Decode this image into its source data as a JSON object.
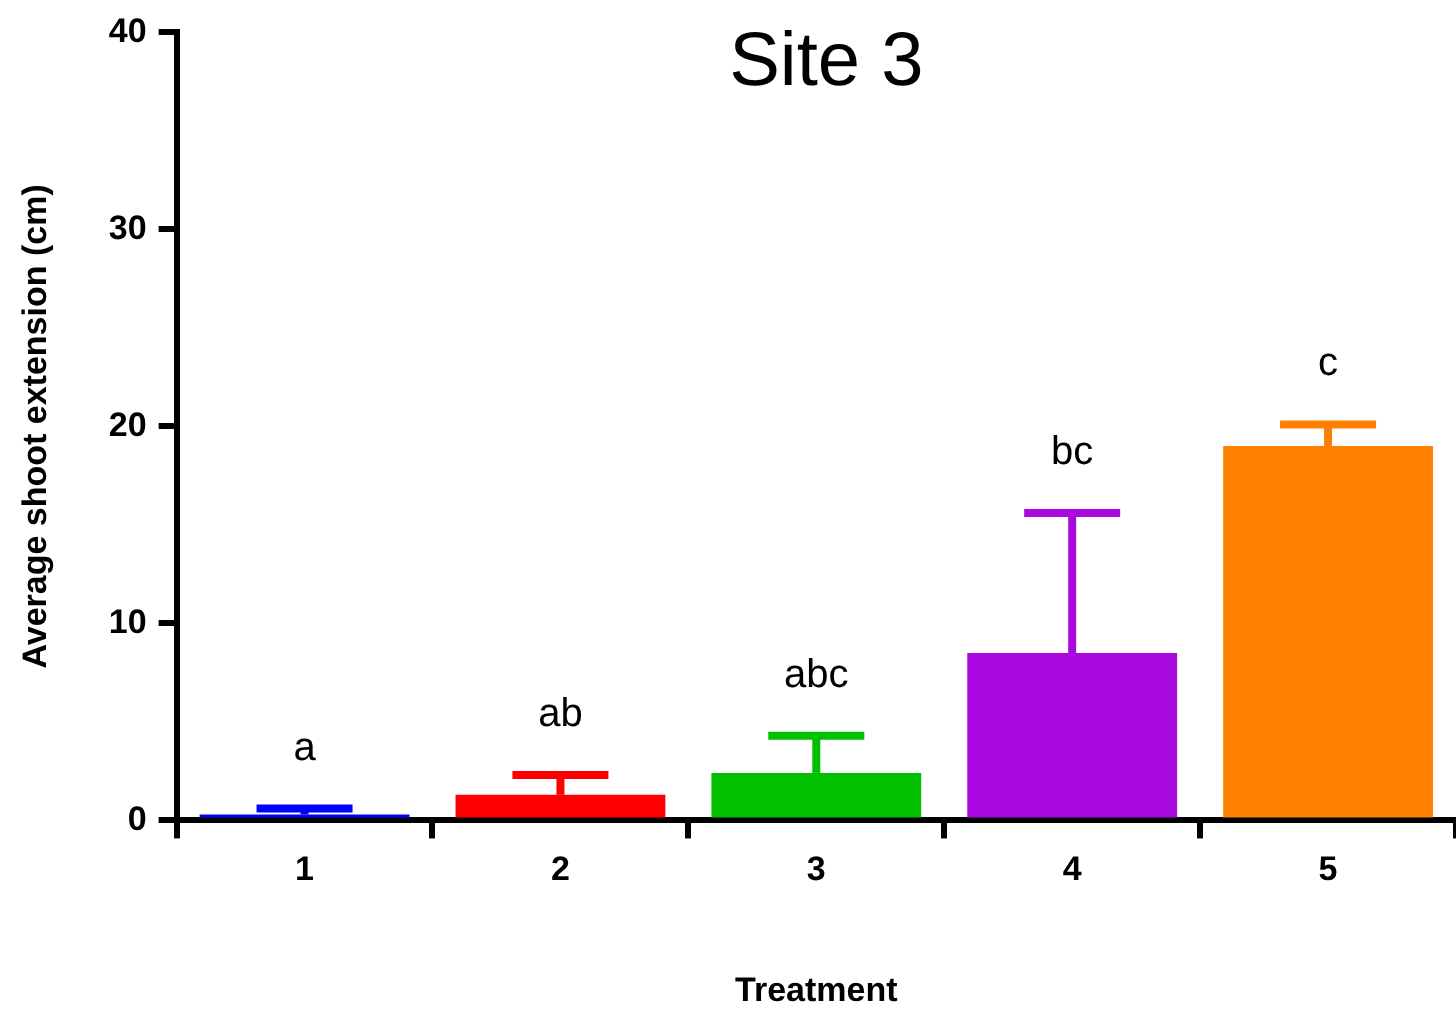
{
  "chart_data": {
    "type": "bar",
    "title": "Site 3",
    "xlabel": "Treatment",
    "ylabel": "Average shoot extension (cm)",
    "categories": [
      "1",
      "2",
      "3",
      "4",
      "5"
    ],
    "values": [
      0.3,
      1.3,
      2.4,
      8.5,
      19.0
    ],
    "colors": [
      "#0000ff",
      "#ff0000",
      "#00c000",
      "#aa08e0",
      "#ff8000"
    ],
    "errors": [
      [
        0.3,
        0.6
      ],
      [
        1.3,
        2.3
      ],
      [
        2.4,
        4.3
      ],
      [
        8.5,
        15.6
      ],
      [
        19.0,
        20.1
      ]
    ],
    "ylim": [
      0,
      40
    ],
    "yticks": [
      0,
      10,
      20,
      30,
      40
    ],
    "grid": false,
    "legend": false,
    "annotations": [
      "a",
      "ab",
      "abc",
      "bc",
      "c"
    ]
  }
}
